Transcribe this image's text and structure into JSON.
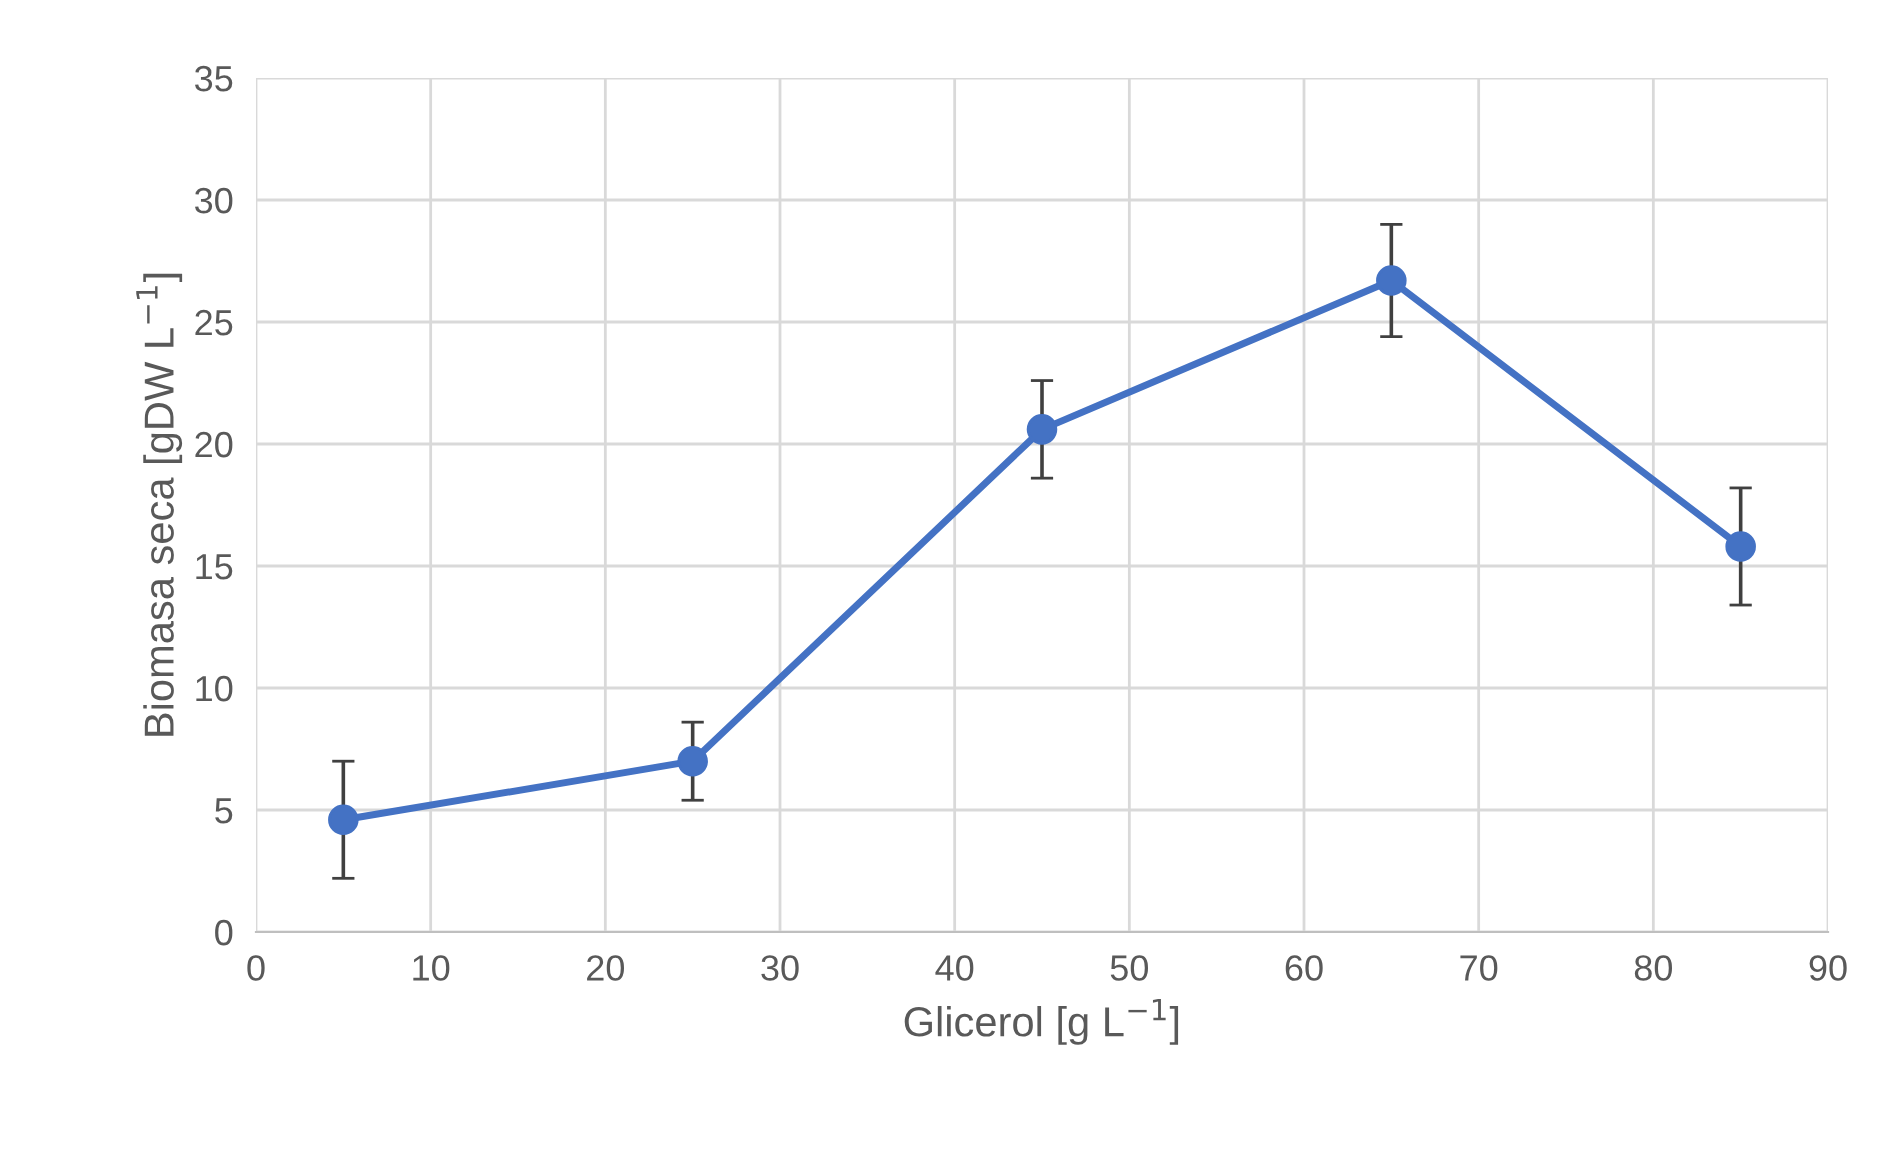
{
  "chart_data": {
    "type": "line",
    "xlabel": "Glicerol [g L$^{−1}$]",
    "ylabel": "Biomasa seca [gDW L$^{−1}$]",
    "x": [
      5,
      25,
      45,
      65,
      85
    ],
    "series": [
      {
        "color": "#4472c4",
        "values": [
          4.6,
          7.0,
          20.6,
          26.7,
          15.8
        ],
        "errors": [
          2.4,
          1.6,
          2.0,
          2.3,
          2.4
        ]
      }
    ],
    "xlim": [
      0,
      90
    ],
    "xticks": [
      0,
      10,
      20,
      30,
      40,
      50,
      60,
      70,
      80,
      90
    ],
    "ylim": [
      0,
      35
    ],
    "yticks": [
      0,
      5,
      10,
      15,
      20,
      25,
      30,
      35
    ],
    "grid": true,
    "marker": "circle",
    "line_style": "solid"
  }
}
